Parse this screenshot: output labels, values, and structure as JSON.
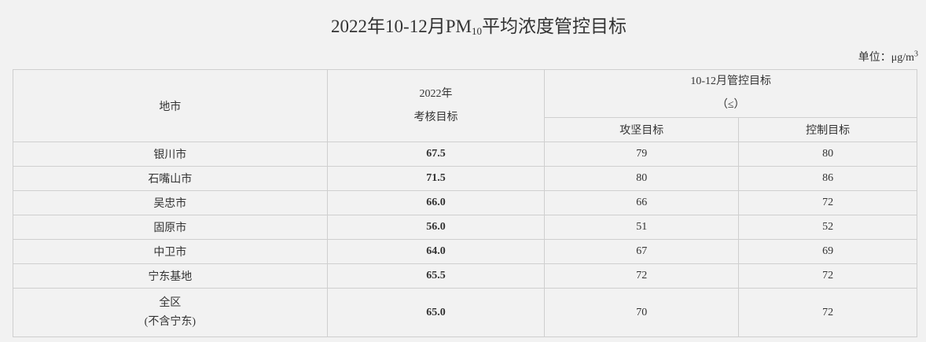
{
  "title": {
    "prefix": "2022年10-12月PM",
    "subscript": "10",
    "suffix": "平均浓度管控目标"
  },
  "unit": {
    "label": "单位：μg/m",
    "superscript": "3"
  },
  "table": {
    "headers": {
      "city": "地市",
      "assessment_line1": "2022年",
      "assessment_line2": "考核目标",
      "control_group_line1": "10-12月管控目标",
      "control_group_line2": "（≤）",
      "tough_target": "攻坚目标",
      "control_target": "控制目标"
    },
    "rows": [
      {
        "city": "银川市",
        "assessment": "67.5",
        "tough": "79",
        "control": "80"
      },
      {
        "city": "石嘴山市",
        "assessment": "71.5",
        "tough": "80",
        "control": "86"
      },
      {
        "city": "吴忠市",
        "assessment": "66.0",
        "tough": "66",
        "control": "72"
      },
      {
        "city": "固原市",
        "assessment": "56.0",
        "tough": "51",
        "control": "52"
      },
      {
        "city": "中卫市",
        "assessment": "64.0",
        "tough": "67",
        "control": "69"
      },
      {
        "city": "宁东基地",
        "assessment": "65.5",
        "tough": "72",
        "control": "72"
      }
    ],
    "total": {
      "city_line1": "全区",
      "city_line2": "(不含宁东)",
      "assessment": "65.0",
      "tough": "70",
      "control": "72"
    }
  }
}
